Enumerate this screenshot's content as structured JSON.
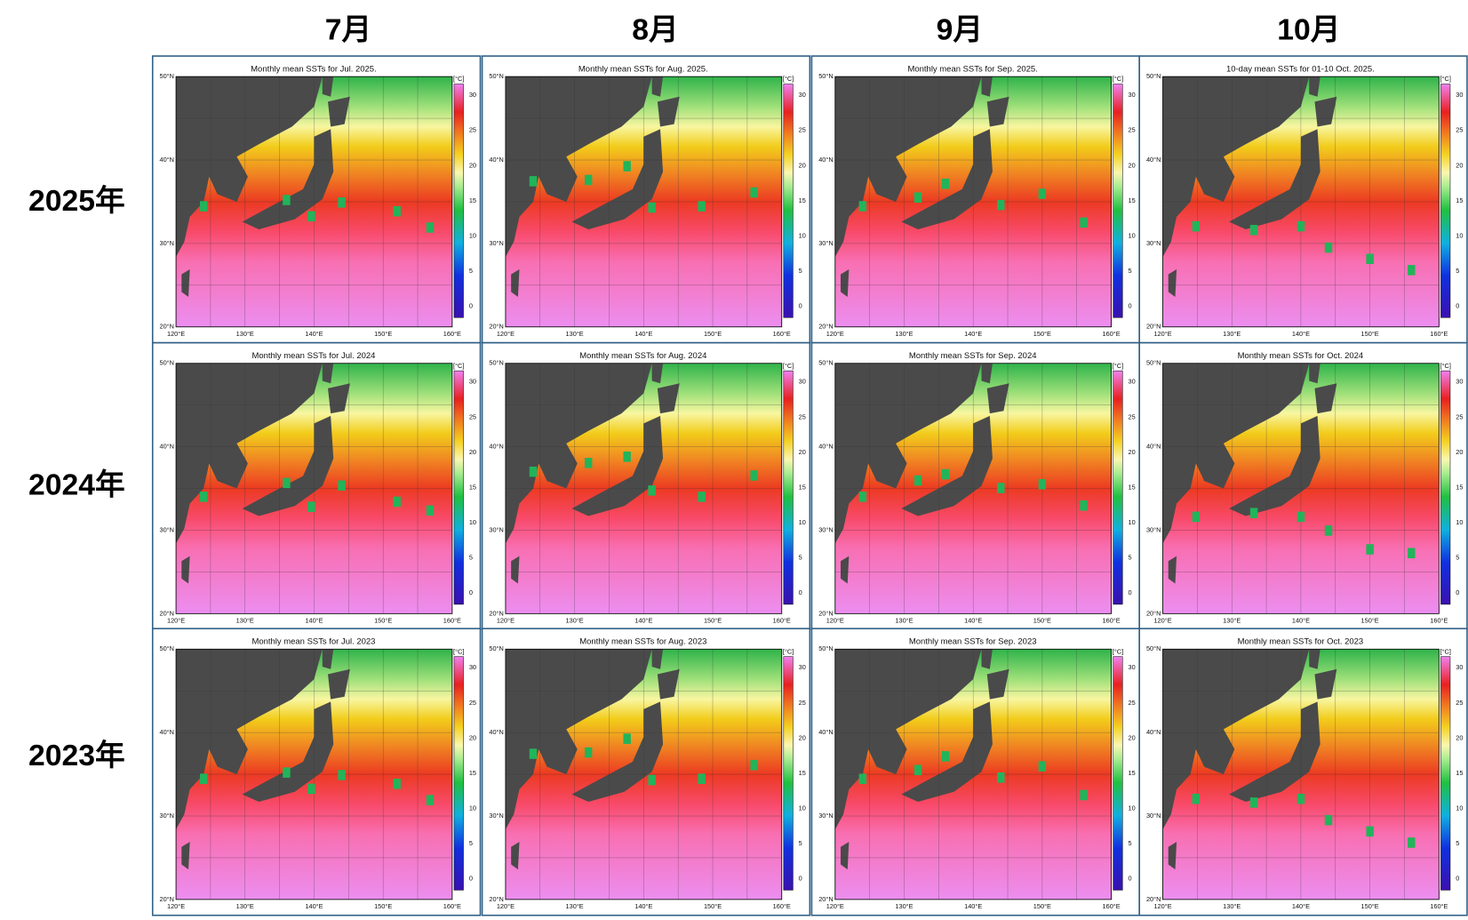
{
  "columns": [
    "7月",
    "8月",
    "9月",
    "10月"
  ],
  "rows": [
    "2025年",
    "2024年",
    "2023年"
  ],
  "panels": [
    [
      {
        "title": "Monthly mean SSTs for Jul. 2025."
      },
      {
        "title": "Monthly mean SSTs for Aug. 2025."
      },
      {
        "title": "Monthly mean SSTs for Sep. 2025."
      },
      {
        "title": "10-day mean SSTs for 01-10 Oct. 2025."
      }
    ],
    [
      {
        "title": "Monthly mean SSTs for Jul. 2024"
      },
      {
        "title": "Monthly mean SSTs for Aug. 2024"
      },
      {
        "title": "Monthly mean SSTs for Sep. 2024"
      },
      {
        "title": "Monthly mean SSTs for Oct. 2024"
      }
    ],
    [
      {
        "title": "Monthly mean SSTs for Jul. 2023"
      },
      {
        "title": "Monthly mean SSTs for Aug. 2023"
      },
      {
        "title": "Monthly mean SSTs for Sep. 2023"
      },
      {
        "title": "Monthly mean SSTs for Oct. 2023"
      }
    ]
  ],
  "lat_labels": [
    "50°N",
    "40°N",
    "30°N",
    "20°N"
  ],
  "lon_labels": [
    "120°E",
    "130°E",
    "140°E",
    "150°E",
    "160°E"
  ],
  "colorbar": {
    "unit": "[°C]",
    "ticks": [
      "30",
      "25",
      "20",
      "15",
      "10",
      "5",
      "0"
    ]
  }
}
